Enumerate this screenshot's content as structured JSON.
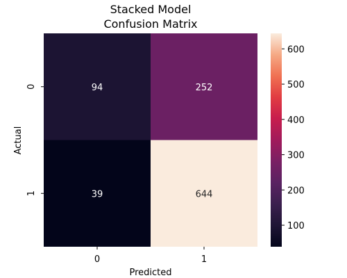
{
  "chart_data": {
    "type": "heatmap",
    "title": [
      "Stacked Model",
      "Confusion Matrix"
    ],
    "xlabel": "Predicted",
    "ylabel": "Actual",
    "x_categories": [
      "0",
      "1"
    ],
    "y_categories": [
      "0",
      "1"
    ],
    "values": [
      [
        94,
        252
      ],
      [
        39,
        644
      ]
    ],
    "colormap": "rocket",
    "colorbar": {
      "range": [
        39,
        644
      ],
      "ticks": [
        100,
        200,
        300,
        400,
        500,
        600
      ]
    },
    "grid": false
  }
}
